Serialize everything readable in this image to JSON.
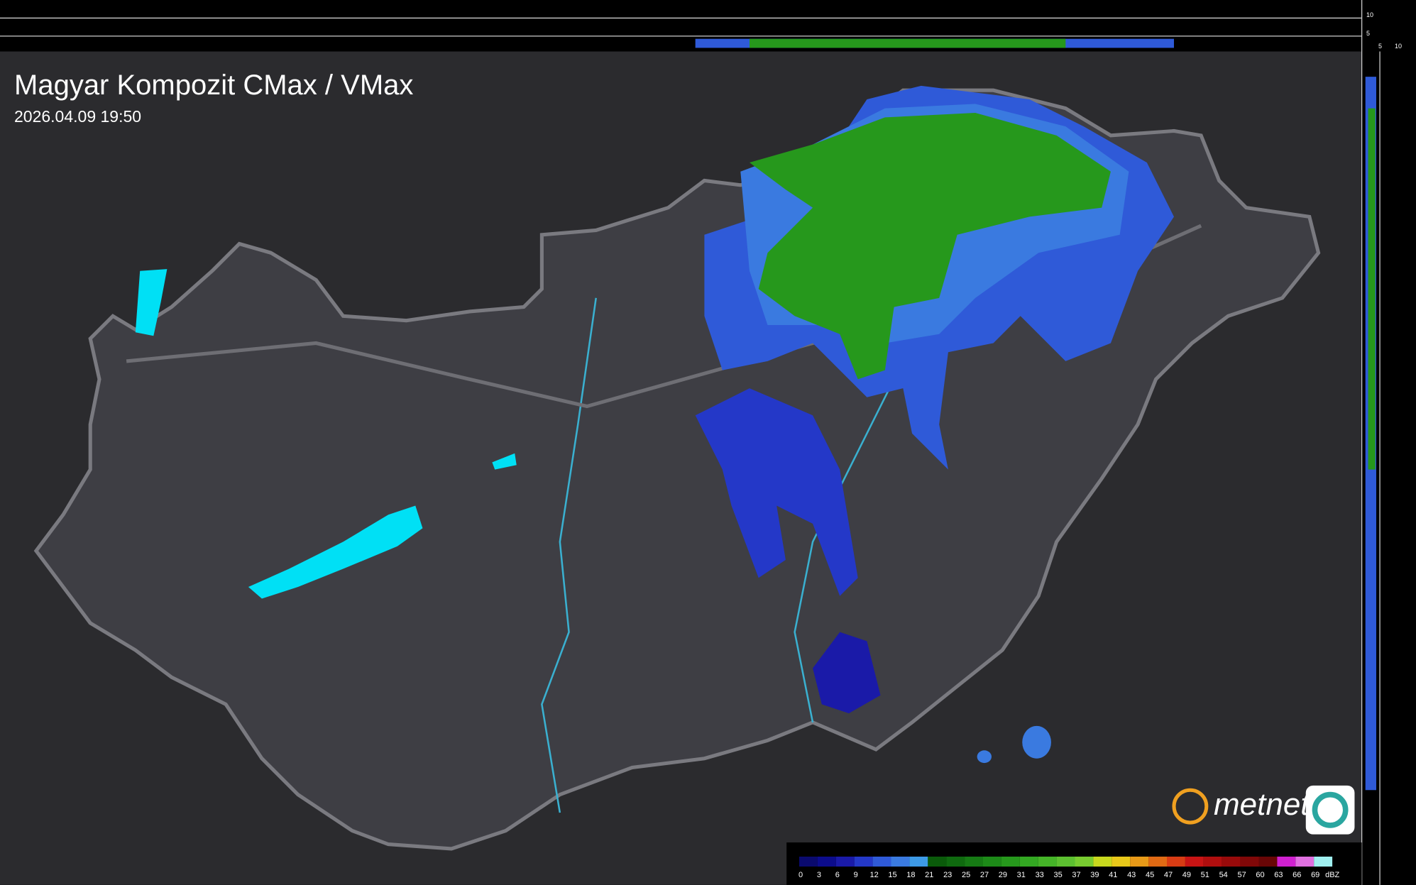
{
  "header": {
    "title": "Magyar Kompozit CMax / VMax",
    "timestamp": "2026.04.09 19:50"
  },
  "side_axis": {
    "top_labels": [
      "10",
      "5"
    ],
    "right_labels": [
      "5",
      "10"
    ]
  },
  "logo": {
    "text": "metnet"
  },
  "legend": {
    "unit": "dBZ",
    "values": [
      0,
      3,
      6,
      9,
      12,
      15,
      18,
      21,
      23,
      25,
      27,
      29,
      31,
      33,
      35,
      37,
      39,
      41,
      43,
      45,
      47,
      49,
      51,
      54,
      57,
      60,
      63,
      66,
      69
    ],
    "colors": [
      "#0a0a6e",
      "#0c0c8c",
      "#1a1aa8",
      "#2438c8",
      "#2f5ad8",
      "#3a7ae0",
      "#3d9ae6",
      "#0a5a0a",
      "#0f6a0f",
      "#167a14",
      "#1d8a18",
      "#26981c",
      "#33a822",
      "#45b428",
      "#5cc030",
      "#78cc30",
      "#c8d81e",
      "#e8c81a",
      "#e89a18",
      "#e06a14",
      "#d83c14",
      "#c81414",
      "#b00e0e",
      "#980a0a",
      "#800808",
      "#680606",
      "#d020d0",
      "#e070e0",
      "#a0f0f0"
    ]
  }
}
